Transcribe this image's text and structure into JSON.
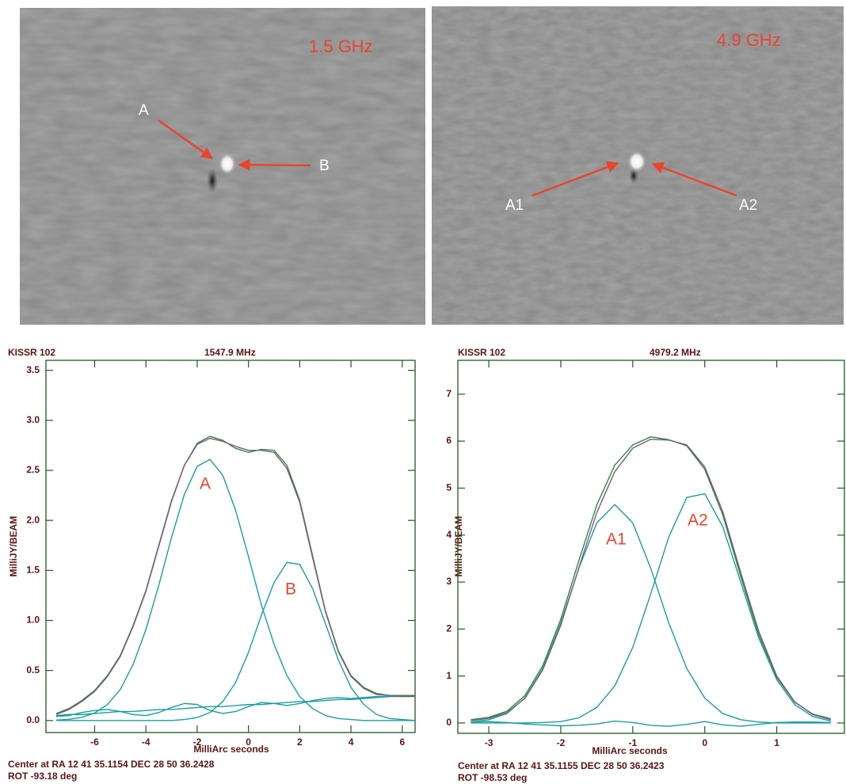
{
  "chart_data": [
    {
      "type": "image",
      "annotations": [
        "1.5 GHz",
        "A",
        "B"
      ]
    },
    {
      "type": "image",
      "annotations": [
        "4.9 GHz",
        "A1",
        "A2"
      ]
    },
    {
      "type": "line",
      "title": "KISSR 102",
      "subtitle": "1547.9 MHz",
      "x_label": "MilliArc seconds",
      "y_label": "MilliJY/BEAM",
      "notes": [
        "Center at RA 12 41 35.1154  DEC 28 50 36.2428",
        "ROT -93.18 deg"
      ],
      "annotations": [
        "A",
        "B"
      ],
      "xlim": [
        -7.9,
        6.5
      ],
      "ylim": [
        -0.12,
        3.6
      ],
      "xticks": [
        -6,
        -4,
        -2,
        0,
        2,
        4,
        6
      ],
      "yticks": [
        {
          "value": 0,
          "label": "0.0"
        },
        0.5,
        {
          "value": 1,
          "label": "1.0"
        },
        1.5,
        {
          "value": 2,
          "label": "2.0"
        },
        2.5,
        {
          "value": 3,
          "label": "3.0"
        },
        3.5
      ],
      "x": [
        -7.5,
        -7,
        -6.5,
        -6,
        -5.5,
        -5,
        -4.5,
        -4,
        -3.5,
        -3,
        -2.5,
        -2,
        -1.5,
        -1,
        -0.5,
        0,
        0.5,
        1,
        1.5,
        2,
        2.5,
        3,
        3.5,
        4,
        4.5,
        5,
        5.5,
        6,
        6.5
      ],
      "series": [
        {
          "color": "#1a9e9e",
          "values": [
            0.05,
            0.06,
            0.06,
            0.07,
            0.08,
            0.09,
            0.09,
            0.1,
            0.11,
            0.11,
            0.12,
            0.13,
            0.14,
            0.14,
            0.15,
            0.16,
            0.16,
            0.17,
            0.18,
            0.19,
            0.19,
            0.2,
            0.21,
            0.21,
            0.22,
            0.23,
            0.24,
            0.24,
            0.25
          ]
        },
        {
          "color": "#1a9e9e",
          "values": [
            0.04,
            0.05,
            0.08,
            0.1,
            0.11,
            0.09,
            0.06,
            0.05,
            0.08,
            0.13,
            0.17,
            0.16,
            0.1,
            0.07,
            0.09,
            0.14,
            0.18,
            0.17,
            0.15,
            0.17,
            0.2,
            0.22,
            0.23,
            0.22,
            0.23,
            0.24,
            0.24,
            0.25,
            0.25
          ]
        },
        {
          "color": "#1a9e9e",
          "values": [
            0.004,
            0.012,
            0.032,
            0.075,
            0.16,
            0.31,
            0.56,
            0.91,
            1.35,
            1.83,
            2.26,
            2.54,
            2.61,
            2.45,
            2.1,
            1.64,
            1.16,
            0.76,
            0.45,
            0.24,
            0.12,
            0.05,
            0.02,
            0.01,
            0,
            0,
            0,
            0,
            0
          ]
        },
        {
          "color": "#1a9e9e",
          "values": [
            0,
            0,
            0,
            0,
            0,
            0,
            0,
            0,
            0,
            0,
            0.01,
            0.03,
            0.08,
            0.19,
            0.38,
            0.68,
            1.05,
            1.38,
            1.58,
            1.56,
            1.32,
            0.97,
            0.61,
            0.33,
            0.16,
            0.06,
            0.02,
            0.01,
            0
          ]
        },
        {
          "color": "#2e8b2e",
          "values": [
            0.07,
            0.12,
            0.2,
            0.3,
            0.45,
            0.65,
            0.95,
            1.3,
            1.75,
            2.2,
            2.55,
            2.77,
            2.84,
            2.8,
            2.72,
            2.68,
            2.71,
            2.7,
            2.55,
            2.2,
            1.65,
            1.1,
            0.7,
            0.45,
            0.33,
            0.27,
            0.25,
            0.25,
            0.25
          ]
        },
        {
          "color": "#7a5a8c",
          "values": [
            0.06,
            0.11,
            0.19,
            0.29,
            0.44,
            0.64,
            0.94,
            1.29,
            1.74,
            2.19,
            2.55,
            2.76,
            2.82,
            2.79,
            2.74,
            2.7,
            2.7,
            2.68,
            2.52,
            2.18,
            1.63,
            1.09,
            0.69,
            0.44,
            0.32,
            0.26,
            0.25,
            0.24,
            0.24
          ]
        }
      ]
    },
    {
      "type": "line",
      "title": "KISSR 102",
      "subtitle": "4979.2 MHz",
      "x_label": "MilliArc seconds",
      "y_label": "MilliJY/BEAM",
      "notes": [
        "Center at RA 12 41 35.1155  DEC 28 50 36.2423",
        "ROT -98.53 deg"
      ],
      "annotations": [
        "A1",
        "A2"
      ],
      "xlim": [
        -3.43,
        1.94
      ],
      "ylim": [
        -0.22,
        7.72
      ],
      "xticks": [
        -3,
        -2,
        -1,
        0,
        1
      ],
      "yticks": [
        0,
        1,
        2,
        3,
        4,
        5,
        6,
        7
      ],
      "x": [
        -3.25,
        -3,
        -2.75,
        -2.5,
        -2.25,
        -2,
        -1.75,
        -1.5,
        -1.25,
        -1,
        -0.75,
        -0.5,
        -0.25,
        0,
        0.25,
        0.5,
        0.75,
        1,
        1.25,
        1.5,
        1.75
      ],
      "series": [
        {
          "color": "#1a9e9e",
          "values": [
            0.02,
            0.03,
            0.01,
            -0.02,
            -0.04,
            -0.06,
            -0.05,
            -0.02,
            0.04,
            0.01,
            -0.05,
            -0.07,
            -0.03,
            0.03,
            -0.04,
            -0.07,
            -0.03,
            0.01,
            0.02,
            0.02,
            0.01
          ]
        },
        {
          "color": "#1a9e9e",
          "values": [
            0.02,
            0.07,
            0.2,
            0.53,
            1.16,
            2.13,
            3.29,
            4.26,
            4.65,
            4.26,
            3.29,
            2.13,
            1.16,
            0.53,
            0.2,
            0.07,
            0.02,
            0,
            0,
            0,
            0
          ]
        },
        {
          "color": "#1a9e9e",
          "values": [
            0,
            0,
            0,
            0,
            0.01,
            0.03,
            0.11,
            0.33,
            0.79,
            1.61,
            2.75,
            3.96,
            4.8,
            4.88,
            4.18,
            3.0,
            1.81,
            0.92,
            0.39,
            0.14,
            0.04
          ]
        },
        {
          "color": "#2e8b2e",
          "values": [
            0.07,
            0.12,
            0.25,
            0.58,
            1.22,
            2.21,
            3.45,
            4.64,
            5.49,
            5.92,
            6.09,
            6.03,
            5.9,
            5.4,
            4.43,
            3.12,
            1.88,
            0.97,
            0.44,
            0.19,
            0.09
          ]
        },
        {
          "color": "#7a5a8c",
          "values": [
            0.05,
            0.1,
            0.22,
            0.52,
            1.13,
            2.08,
            3.3,
            4.48,
            5.35,
            5.85,
            6.04,
            6.02,
            5.92,
            5.45,
            4.5,
            3.2,
            1.95,
            1.0,
            0.45,
            0.18,
            0.07
          ]
        }
      ]
    }
  ]
}
